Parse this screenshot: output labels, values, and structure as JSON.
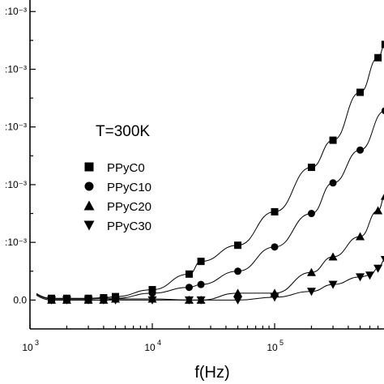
{
  "chart_data": {
    "type": "scatter",
    "title": "",
    "xlabel": "f(Hz)",
    "ylabel": "",
    "x_scale": "log",
    "xlim": [
      1000,
      900000
    ],
    "ylim": [
      -0.0005,
      0.0052
    ],
    "x_ticks": [
      {
        "value": 1000,
        "label": "10",
        "exp": "3"
      },
      {
        "value": 10000,
        "label": "10",
        "exp": "4"
      },
      {
        "value": 100000,
        "label": "10",
        "exp": "5"
      }
    ],
    "y_ticks": [
      {
        "value": 0.0,
        "label": "0.0"
      },
      {
        "value": 0.001,
        "label": ":10⁻³"
      },
      {
        "value": 0.002,
        "label": ":10⁻³"
      },
      {
        "value": 0.003,
        "label": ":10⁻³"
      },
      {
        "value": 0.004,
        "label": ":10⁻³"
      },
      {
        "value": 0.005,
        "label": ":10⁻³"
      }
    ],
    "annotation": "T=300K",
    "legend_position": "middle-left",
    "series": [
      {
        "name": "PPyC0",
        "marker": "square",
        "x": [
          1500,
          2000,
          3000,
          4000,
          5000,
          10000,
          20000,
          25000,
          50000,
          100000,
          200000,
          300000,
          500000,
          700000,
          800000
        ],
        "y": [
          3e-05,
          3e-05,
          3e-05,
          4e-05,
          6e-05,
          0.00018,
          0.00045,
          0.00067,
          0.00095,
          0.00153,
          0.0023,
          0.00277,
          0.0036,
          0.0042,
          0.00443
        ]
      },
      {
        "name": "PPyC10",
        "marker": "circle",
        "x": [
          1500,
          2000,
          3000,
          4000,
          5000,
          10000,
          20000,
          25000,
          50000,
          100000,
          200000,
          300000,
          500000,
          800000
        ],
        "y": [
          2e-05,
          2e-05,
          2e-05,
          3e-05,
          3e-05,
          0.00012,
          0.00022,
          0.00027,
          0.0005,
          0.00092,
          0.0015,
          0.00203,
          0.0026,
          0.00328
        ]
      },
      {
        "name": "PPyC20",
        "marker": "triangle-up",
        "x": [
          1500,
          2000,
          3000,
          4000,
          5000,
          10000,
          20000,
          25000,
          50000,
          100000,
          200000,
          300000,
          500000,
          700000,
          800000
        ],
        "y": [
          0.0,
          0.0,
          0.0,
          0.0,
          2e-05,
          2e-05,
          0.0,
          0.0,
          0.00012,
          0.00012,
          0.00048,
          0.00075,
          0.0011,
          0.00155,
          0.0018
        ]
      },
      {
        "name": "PPyC30",
        "marker": "triangle-down",
        "x": [
          1500,
          2000,
          3000,
          4000,
          5000,
          10000,
          20000,
          25000,
          50000,
          100000,
          200000,
          300000,
          500000,
          600000,
          700000,
          800000
        ],
        "y": [
          0.0,
          0.0,
          0.0,
          0.0,
          0.0,
          0.0,
          0.0,
          0.0,
          0.0,
          5e-05,
          0.00015,
          0.00027,
          0.0004,
          0.00043,
          0.00055,
          0.0007
        ]
      }
    ]
  }
}
